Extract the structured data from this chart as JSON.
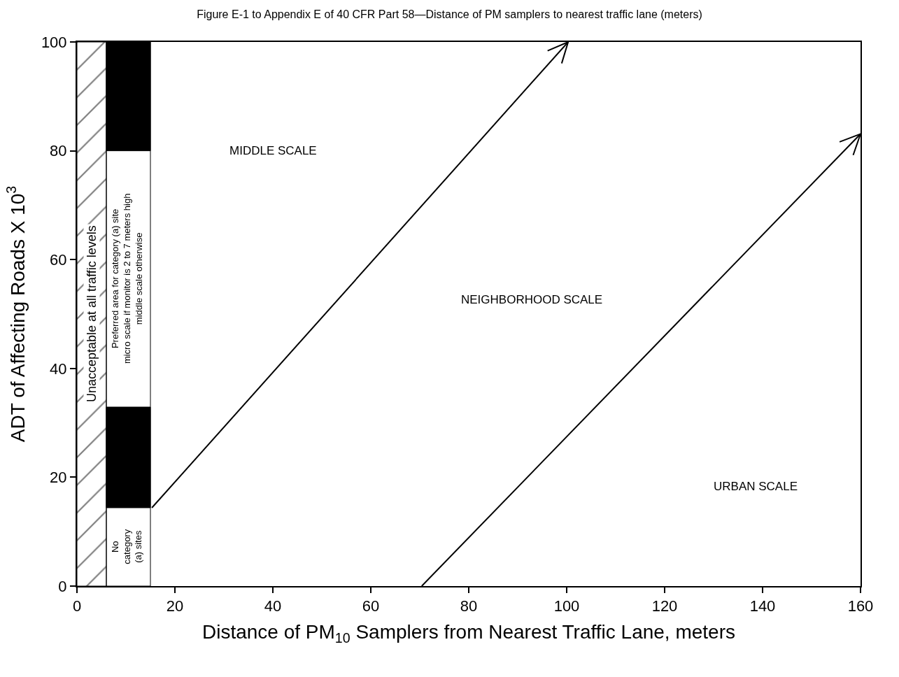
{
  "chart_data": {
    "type": "line",
    "title": "Figure E-1 to Appendix E of 40 CFR Part 58—Distance of PM samplers to nearest traffic lane (meters)",
    "xlabel": "Distance of PM$_{10}$ Samplers from Nearest Traffic Lane, meters",
    "ylabel": "ADT of Affecting Roads X 10$^{3}$",
    "xlim": [
      0,
      160
    ],
    "xticks": [
      0,
      20,
      40,
      60,
      80,
      100,
      120,
      140,
      160
    ],
    "ylim": [
      0,
      100
    ],
    "yticks": [
      0,
      20,
      40,
      60,
      80,
      100
    ],
    "grid": false,
    "series": [
      {
        "type": "bar",
        "color": "#000000",
        "x": [
          10.5,
          10.5
        ],
        "base": [
          14.4,
          80
        ],
        "values": [
          18.5,
          20
        ]
      },
      {
        "type": "line",
        "color": "#000000",
        "x": [
          15.3,
          100.3
        ],
        "values": [
          14.4,
          100
        ]
      },
      {
        "color": "#000000",
        "x": [
          70.4,
          160
        ],
        "values": [
          0,
          83.1
        ]
      }
    ],
    "bands": [
      {
        "axis": "x",
        "from": 0,
        "to": 6,
        "label": "Unacceptable at all traffic levels",
        "color": "#000000"
      }
    ],
    "annotations": [
      "MIDDLE SCALE",
      "NEIGHBORHOOD SCALE",
      "URBAN SCALE",
      "Preferred area for category (a) site\nmicro scale if monitor is 2 to 7 meters high\nmiddle scale otherwise",
      "No\ncategory\n(a) sites"
    ]
  }
}
